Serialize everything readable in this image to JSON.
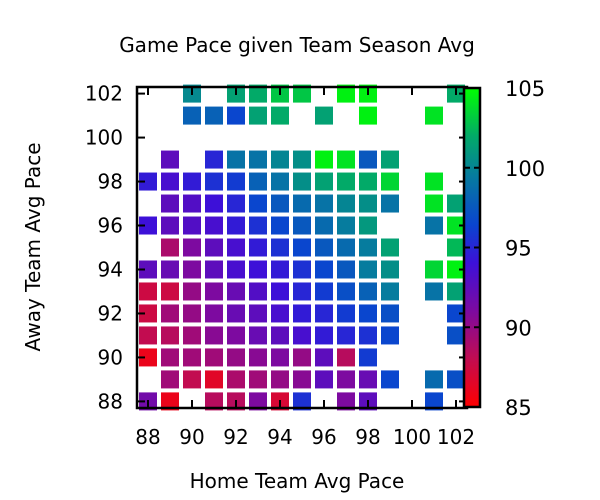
{
  "chart_data": {
    "type": "heatmap",
    "title": "Game Pace given Team Season Avg",
    "xlabel": "Home Team Avg Pace",
    "ylabel": "Away Team Avg Pace",
    "xlim": [
      87.5,
      102.5
    ],
    "ylim": [
      87.7,
      102.3
    ],
    "xticks": [
      88,
      90,
      92,
      94,
      96,
      98,
      100,
      102
    ],
    "yticks": [
      88,
      90,
      92,
      94,
      96,
      98,
      100,
      102
    ],
    "colorbar": {
      "range": [
        85,
        105
      ],
      "ticks": [
        85,
        90,
        95,
        100,
        105
      ]
    },
    "grid": false,
    "palette": [
      {
        "stop": 0.0,
        "color": "#ff0000"
      },
      {
        "stop": 0.15,
        "color": "#c20c50"
      },
      {
        "stop": 0.3,
        "color": "#7d0aa0"
      },
      {
        "stop": 0.45,
        "color": "#3d10d8"
      },
      {
        "stop": 0.57,
        "color": "#0a44d0"
      },
      {
        "stop": 0.72,
        "color": "#067aa0"
      },
      {
        "stop": 0.85,
        "color": "#02aa68"
      },
      {
        "stop": 1.0,
        "color": "#00ff00"
      }
    ],
    "grid_cells": {
      "x": [
        88,
        89,
        90,
        91,
        92,
        93,
        94,
        95,
        96,
        97,
        98,
        99,
        100,
        101,
        102
      ],
      "y": [
        102,
        101,
        100,
        99,
        98,
        97,
        96,
        95,
        94,
        93,
        92,
        91,
        90,
        89,
        88
      ],
      "values": [
        [
          null,
          null,
          100.2,
          null,
          101.5,
          102.0,
          103.0,
          103.0,
          null,
          104.5,
          104.5,
          null,
          null,
          null,
          102.0
        ],
        [
          null,
          null,
          98.0,
          98.0,
          96.5,
          101.5,
          102.0,
          null,
          101.5,
          null,
          104.5,
          null,
          null,
          104.0,
          null
        ],
        [
          null,
          null,
          null,
          null,
          null,
          null,
          null,
          null,
          null,
          null,
          null,
          null,
          null,
          null,
          null
        ],
        [
          null,
          92.5,
          null,
          95.0,
          99.0,
          99.0,
          100.0,
          100.5,
          104.5,
          104.0,
          97.5,
          101.5,
          null,
          null,
          null
        ],
        [
          94.5,
          93.5,
          94.5,
          95.5,
          96.0,
          98.0,
          99.0,
          100.5,
          101.5,
          102.0,
          102.0,
          103.5,
          null,
          104.0,
          null
        ],
        [
          null,
          92.5,
          93.0,
          94.0,
          95.0,
          96.5,
          97.5,
          98.5,
          99.0,
          100.0,
          100.5,
          99.0,
          null,
          104.0,
          101.5
        ],
        [
          94.0,
          92.5,
          93.0,
          93.5,
          94.5,
          95.5,
          96.5,
          97.5,
          98.5,
          99.5,
          101.0,
          null,
          null,
          99.0,
          104.0
        ],
        [
          null,
          89.0,
          91.0,
          92.5,
          93.5,
          94.5,
          95.5,
          96.5,
          97.5,
          98.5,
          99.5,
          101.5,
          null,
          null,
          102.5
        ],
        [
          92.5,
          92.0,
          91.0,
          92.5,
          93.5,
          94.0,
          94.5,
          95.5,
          96.5,
          97.5,
          99.5,
          100.5,
          null,
          103.5,
          104.5
        ],
        [
          87.5,
          87.5,
          90.0,
          91.0,
          92.0,
          93.0,
          94.0,
          95.0,
          96.0,
          97.0,
          98.0,
          99.5,
          null,
          99.0,
          101.5
        ],
        [
          87.5,
          89.5,
          90.0,
          91.0,
          92.0,
          92.5,
          93.5,
          94.5,
          95.0,
          96.0,
          96.5,
          97.0,
          null,
          null,
          96.5
        ],
        [
          88.0,
          88.5,
          89.5,
          90.5,
          91.0,
          92.0,
          92.5,
          93.5,
          94.5,
          95.0,
          95.5,
          96.5,
          null,
          null,
          97.0
        ],
        [
          86.0,
          89.5,
          89.5,
          89.5,
          90.0,
          90.5,
          91.0,
          90.0,
          92.5,
          88.5,
          96.0,
          null,
          null,
          null,
          null
        ],
        [
          null,
          89.5,
          88.0,
          86.5,
          89.0,
          89.5,
          90.0,
          90.5,
          92.5,
          91.0,
          92.0,
          96.5,
          null,
          98.5,
          97.0
        ],
        [
          91.5,
          86.0,
          null,
          88.5,
          88.5,
          91.0,
          87.0,
          95.5,
          null,
          91.0,
          92.5,
          null,
          null,
          96.5,
          null
        ]
      ]
    }
  }
}
